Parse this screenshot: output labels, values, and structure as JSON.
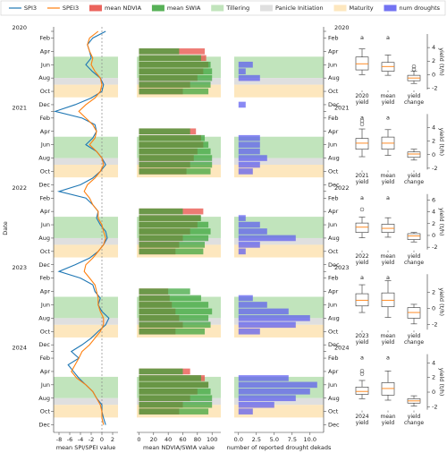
{
  "chart_data": [
    {
      "type": "line",
      "xlabel": "mean SPI/SPEI value",
      "ylabel": "Date",
      "xlim": [
        -9,
        3
      ],
      "xticks": [
        -8,
        -6,
        -4,
        -2,
        0,
        2
      ],
      "reference_line": 0,
      "dates": [
        "2020-01",
        "2020-02",
        "2020-03",
        "2020-04",
        "2020-05",
        "2020-06",
        "2020-07",
        "2020-08",
        "2020-09",
        "2020-10",
        "2020-11",
        "2020-12",
        "2021-01",
        "2021-02",
        "2021-03",
        "2021-04",
        "2021-05",
        "2021-06",
        "2021-07",
        "2021-08",
        "2021-09",
        "2021-10",
        "2021-11",
        "2021-12",
        "2022-01",
        "2022-02",
        "2022-03",
        "2022-04",
        "2022-05",
        "2022-06",
        "2022-07",
        "2022-08",
        "2022-09",
        "2022-10",
        "2022-11",
        "2022-12",
        "2023-01",
        "2023-02",
        "2023-03",
        "2023-04",
        "2023-05",
        "2023-06",
        "2023-07",
        "2023-08",
        "2023-09",
        "2023-10",
        "2023-11",
        "2023-12",
        "2024-01",
        "2024-02",
        "2024-03",
        "2024-04",
        "2024-05",
        "2024-06",
        "2024-07",
        "2024-08",
        "2024-09",
        "2024-10",
        "2024-11",
        "2024-12"
      ],
      "yticks": [
        {
          "value": "2020-01",
          "label": "2020"
        },
        {
          "value": "2020-02",
          "label": "Feb"
        },
        {
          "value": "2020-04",
          "label": "Apr"
        },
        {
          "value": "2020-06",
          "label": "Jun"
        },
        {
          "value": "2020-08",
          "label": "Aug"
        },
        {
          "value": "2020-10",
          "label": "Oct"
        },
        {
          "value": "2020-12",
          "label": "Dec"
        },
        {
          "value": "2021-01",
          "label": "2021"
        },
        {
          "value": "2021-02",
          "label": "Feb"
        },
        {
          "value": "2021-04",
          "label": "Apr"
        },
        {
          "value": "2021-06",
          "label": "Jun"
        },
        {
          "value": "2021-08",
          "label": "Aug"
        },
        {
          "value": "2021-10",
          "label": "Oct"
        },
        {
          "value": "2021-12",
          "label": "Dec"
        },
        {
          "value": "2022-01",
          "label": "2022"
        },
        {
          "value": "2022-02",
          "label": "Feb"
        },
        {
          "value": "2022-04",
          "label": "Apr"
        },
        {
          "value": "2022-06",
          "label": "Jun"
        },
        {
          "value": "2022-08",
          "label": "Aug"
        },
        {
          "value": "2022-10",
          "label": "Oct"
        },
        {
          "value": "2022-12",
          "label": "Dec"
        },
        {
          "value": "2023-01",
          "label": "2023"
        },
        {
          "value": "2023-02",
          "label": "Feb"
        },
        {
          "value": "2023-04",
          "label": "Apr"
        },
        {
          "value": "2023-06",
          "label": "Jun"
        },
        {
          "value": "2023-08",
          "label": "Aug"
        },
        {
          "value": "2023-10",
          "label": "Oct"
        },
        {
          "value": "2023-12",
          "label": "Dec"
        },
        {
          "value": "2024-01",
          "label": "2024"
        },
        {
          "value": "2024-02",
          "label": "Feb"
        },
        {
          "value": "2024-04",
          "label": "Apr"
        },
        {
          "value": "2024-06",
          "label": "Jun"
        },
        {
          "value": "2024-08",
          "label": "Aug"
        },
        {
          "value": "2024-10",
          "label": "Oct"
        },
        {
          "value": "2024-12",
          "label": "Dec"
        }
      ],
      "stages": [
        {
          "name": "Tillering",
          "color": "#b6dfb0",
          "start_month": 4.8,
          "end_month": 8.0
        },
        {
          "name": "Panicle Initiation",
          "color": "#d9d9d9",
          "start_month": 8.0,
          "end_month": 9.0
        },
        {
          "name": "Maturity",
          "color": "#fde3b3",
          "start_month": 9.0,
          "end_month": 10.9
        }
      ],
      "series": [
        {
          "name": "SPI3",
          "color": "#1f77b4",
          "values": [
            0.7,
            -1.7,
            -2.7,
            -2.3,
            -2.0,
            -3.0,
            -1.8,
            -0.3,
            0.3,
            0.0,
            -2.0,
            -5.0,
            -8.7,
            -3.7,
            -1.3,
            -1.0,
            -1.7,
            -3.0,
            -1.0,
            0.0,
            0.7,
            -0.3,
            -1.7,
            -4.0,
            -8.0,
            -3.0,
            -1.7,
            -0.7,
            -1.0,
            -0.3,
            0.7,
            1.0,
            0.3,
            -0.7,
            -2.3,
            -5.0,
            -8.0,
            -4.0,
            -1.7,
            -1.3,
            -0.3,
            -0.7,
            0.0,
            1.3,
            0.7,
            -0.7,
            -2.0,
            -3.7,
            -5.7,
            -4.3,
            -6.3,
            -5.3,
            -4.3,
            -3.0,
            -1.7,
            -1.0,
            0.0,
            0.0,
            0.3,
            0.7
          ]
        },
        {
          "name": "SPEI3",
          "color": "#ff7f0e",
          "values": [
            -0.7,
            -2.3,
            -2.7,
            -2.3,
            -1.7,
            -2.0,
            -1.3,
            -0.3,
            0.0,
            -0.3,
            -1.3,
            -3.0,
            -4.3,
            -3.0,
            -1.7,
            -1.0,
            -1.3,
            -2.3,
            -1.0,
            0.0,
            0.3,
            -0.3,
            -1.3,
            -2.7,
            -3.3,
            -2.3,
            -1.7,
            -0.7,
            -0.7,
            0.0,
            0.3,
            0.7,
            0.3,
            -0.7,
            -1.7,
            -3.0,
            -3.3,
            -2.3,
            -1.3,
            -1.0,
            -0.7,
            -0.7,
            -0.3,
            0.3,
            0.3,
            -0.3,
            -1.3,
            -2.3,
            -3.7,
            -4.3,
            -5.0,
            -5.7,
            -4.7,
            -3.0,
            -1.7,
            -1.0,
            -0.3,
            0.0,
            0.0,
            0.3
          ]
        }
      ]
    },
    {
      "type": "barh",
      "xlabel": "mean NDVIA/SWIA value",
      "xlim": [
        -3,
        112
      ],
      "xticks": [
        0,
        20,
        40,
        60,
        80,
        100
      ],
      "series": [
        {
          "name": "mean NDVIA",
          "color": "#e8483f",
          "values": [
            null,
            null,
            null,
            90,
            92,
            95,
            88,
            80,
            70,
            60,
            null,
            null,
            null,
            null,
            null,
            78,
            85,
            88,
            80,
            75,
            70,
            65,
            null,
            null,
            null,
            null,
            null,
            88,
            84,
            80,
            70,
            60,
            55,
            50,
            null,
            null,
            null,
            null,
            null,
            40,
            42,
            45,
            50,
            55,
            60,
            50,
            null,
            null,
            null,
            null,
            null,
            70,
            90,
            95,
            80,
            70,
            60,
            55,
            null,
            null
          ]
        },
        {
          "name": "mean SWIA",
          "color": "#3aa33a",
          "values": [
            null,
            null,
            null,
            55,
            85,
            98,
            100,
            100,
            98,
            95,
            null,
            null,
            null,
            null,
            null,
            70,
            90,
            95,
            98,
            100,
            100,
            98,
            null,
            null,
            null,
            null,
            null,
            60,
            85,
            95,
            98,
            95,
            90,
            88,
            null,
            null,
            null,
            null,
            null,
            70,
            85,
            95,
            100,
            95,
            98,
            90,
            null,
            null,
            null,
            null,
            null,
            60,
            85,
            95,
            98,
            100,
            100,
            95,
            null,
            null
          ]
        }
      ]
    },
    {
      "type": "barh",
      "xlabel": "number of reported drought dekads",
      "xlim": [
        -0.6,
        11.9
      ],
      "xticks": [
        {
          "value": 0,
          "label": "0.0"
        },
        {
          "value": 2.5,
          "label": "2.5"
        },
        {
          "value": 5,
          "label": "5.0"
        },
        {
          "value": 7.5,
          "label": "7.5"
        },
        {
          "value": 10,
          "label": "10.0"
        }
      ],
      "series": [
        {
          "name": "num droughts",
          "color": "#5b5bf0",
          "values": [
            null,
            null,
            null,
            null,
            null,
            2,
            1,
            3,
            null,
            null,
            null,
            1,
            null,
            null,
            null,
            null,
            3,
            3,
            3,
            4,
            3,
            2,
            null,
            null,
            null,
            null,
            null,
            null,
            1,
            3,
            4,
            8,
            3,
            1,
            null,
            null,
            null,
            null,
            null,
            null,
            2,
            4,
            7,
            10,
            8,
            3,
            null,
            null,
            null,
            null,
            null,
            null,
            7,
            11,
            10,
            8,
            5,
            2,
            null,
            null
          ]
        }
      ]
    },
    {
      "type": "box",
      "ylabel": "yield (t/h)",
      "categories": [
        "2020\nyield",
        "mean\nyield",
        "yield\nchange"
      ],
      "letters": [
        "a",
        "a"
      ],
      "ylim": [
        -2.2,
        6.0
      ],
      "yticks": [
        -2,
        0,
        2,
        4
      ],
      "boxes": [
        {
          "low": 0.0,
          "q1": 0.7,
          "median": 1.6,
          "q3": 2.6,
          "high": 3.8
        },
        {
          "low": -0.1,
          "q1": 0.5,
          "median": 1.2,
          "q3": 1.8,
          "high": 2.9
        },
        {
          "low": -1.3,
          "q1": -0.9,
          "median": -0.5,
          "q3": -0.1,
          "high": 0.5,
          "outliers": [
            1.2,
            0.8
          ]
        }
      ]
    },
    {
      "type": "box",
      "ylabel": "yield (t/h)",
      "categories": [
        "2021\nyield",
        "mean\nyield",
        "yield\nchange"
      ],
      "letters": [
        "a",
        "a"
      ],
      "ylim": [
        -2.2,
        6.0
      ],
      "yticks": [
        -2,
        0,
        2,
        4
      ],
      "boxes": [
        {
          "low": -0.3,
          "q1": 0.8,
          "median": 1.7,
          "q3": 2.4,
          "high": 3.8,
          "outliers": [
            5.0,
            4.5
          ]
        },
        {
          "low": -0.1,
          "q1": 0.8,
          "median": 1.7,
          "q3": 2.6,
          "high": 3.7
        },
        {
          "low": -0.8,
          "q1": -0.4,
          "median": 0.1,
          "q3": 0.4,
          "high": 0.8
        }
      ]
    },
    {
      "type": "box",
      "ylabel": "yield (t/h)",
      "categories": [
        "2022\nyield",
        "mean\nyield",
        "yield\nchange"
      ],
      "letters": [
        "a",
        "a"
      ],
      "ylim": [
        -2.4,
        7.0
      ],
      "yticks": [
        -2,
        0,
        2,
        4,
        6
      ],
      "boxes": [
        {
          "low": -0.4,
          "q1": 0.5,
          "median": 1.4,
          "q3": 2.1,
          "high": 3.1,
          "outliers": [
            4.4
          ]
        },
        {
          "low": -0.3,
          "q1": 0.5,
          "median": 1.2,
          "q3": 1.9,
          "high": 3.0
        },
        {
          "low": -1.1,
          "q1": -0.7,
          "median": -0.1,
          "q3": 0.3,
          "high": 0.5
        }
      ]
    },
    {
      "type": "box",
      "ylabel": "yield (t/h)",
      "categories": [
        "2023\nyield",
        "mean\nyield",
        "yield\nchange"
      ],
      "letters": [
        "a",
        "a"
      ],
      "ylim": [
        -2.6,
        4.2
      ],
      "yticks": [
        -2,
        0,
        2
      ],
      "boxes": [
        {
          "low": -0.5,
          "q1": 0.3,
          "median": 1.0,
          "q3": 1.8,
          "high": 2.9
        },
        {
          "low": -1.1,
          "q1": 0.2,
          "median": 1.0,
          "q3": 1.9,
          "high": 3.4
        },
        {
          "low": -1.9,
          "q1": -1.2,
          "median": -0.5,
          "q3": 0.1,
          "high": 0.5
        }
      ]
    },
    {
      "type": "box",
      "ylabel": "yield (t/h)",
      "categories": [
        "2024\nyield",
        "mean\nyield",
        "yield\nchange"
      ],
      "letters": [
        "a",
        "a"
      ],
      "ylim": [
        -2.4,
        5.2
      ],
      "yticks": [
        -2,
        0,
        2,
        4
      ],
      "boxes": [
        {
          "low": -0.9,
          "q1": -0.3,
          "median": 0.1,
          "q3": 0.7,
          "high": 1.6,
          "outliers": [
            2.9,
            2.5
          ]
        },
        {
          "low": -1.1,
          "q1": -0.4,
          "median": 0.5,
          "q3": 1.3,
          "high": 2.9
        },
        {
          "low": -1.9,
          "q1": -1.5,
          "median": -1.2,
          "q3": -0.9,
          "high": -0.5
        }
      ]
    }
  ]
}
